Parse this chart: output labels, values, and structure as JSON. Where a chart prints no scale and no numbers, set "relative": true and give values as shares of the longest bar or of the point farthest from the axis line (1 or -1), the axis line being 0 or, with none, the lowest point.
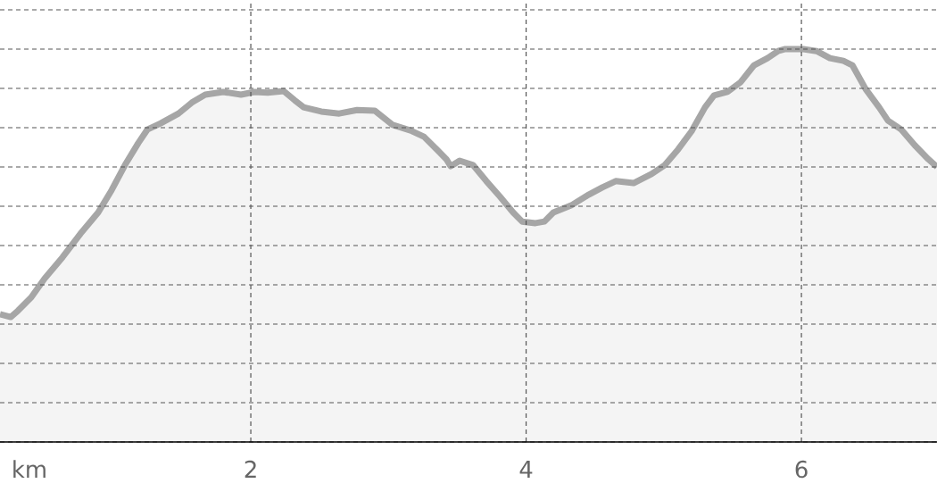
{
  "chart_data": {
    "type": "area",
    "xlabel": "km",
    "relative": true,
    "grid": true,
    "tick_labels": "x",
    "xlim": [
      0.178,
      6.985
    ],
    "xticks": [
      2,
      4,
      6
    ],
    "series": [
      {
        "color": "#a6a6a6",
        "x": [
          0.178,
          0.256,
          0.308,
          0.405,
          0.502,
          0.632,
          0.762,
          0.891,
          0.989,
          1.086,
          1.183,
          1.248,
          1.345,
          1.475,
          1.572,
          1.669,
          1.799,
          1.929,
          2.026,
          2.123,
          2.24,
          2.318,
          2.383,
          2.512,
          2.642,
          2.772,
          2.901,
          3.031,
          3.16,
          3.258,
          3.355,
          3.42,
          3.452,
          3.517,
          3.614,
          3.711,
          3.809,
          3.906,
          3.971,
          4.068,
          4.133,
          4.198,
          4.327,
          4.457,
          4.554,
          4.651,
          4.781,
          4.911,
          5.008,
          5.105,
          5.202,
          5.3,
          5.365,
          5.462,
          5.559,
          5.656,
          5.754,
          5.831,
          5.883,
          6.013,
          6.11,
          6.207,
          6.305,
          6.37,
          6.467,
          6.564,
          6.629,
          6.726,
          6.824,
          6.921,
          6.985
        ],
        "values": [
          0.325,
          0.318,
          0.334,
          0.368,
          0.416,
          0.47,
          0.53,
          0.584,
          0.641,
          0.705,
          0.761,
          0.795,
          0.811,
          0.836,
          0.864,
          0.884,
          0.891,
          0.884,
          0.891,
          0.889,
          0.893,
          0.87,
          0.852,
          0.841,
          0.836,
          0.845,
          0.843,
          0.807,
          0.793,
          0.777,
          0.743,
          0.72,
          0.702,
          0.716,
          0.705,
          0.664,
          0.625,
          0.584,
          0.561,
          0.557,
          0.561,
          0.584,
          0.602,
          0.63,
          0.648,
          0.664,
          0.659,
          0.682,
          0.705,
          0.745,
          0.791,
          0.852,
          0.882,
          0.891,
          0.916,
          0.959,
          0.977,
          0.995,
          1,
          1,
          0.995,
          0.977,
          0.97,
          0.959,
          0.898,
          0.852,
          0.818,
          0.795,
          0.755,
          0.72,
          0.7
        ]
      }
    ]
  }
}
